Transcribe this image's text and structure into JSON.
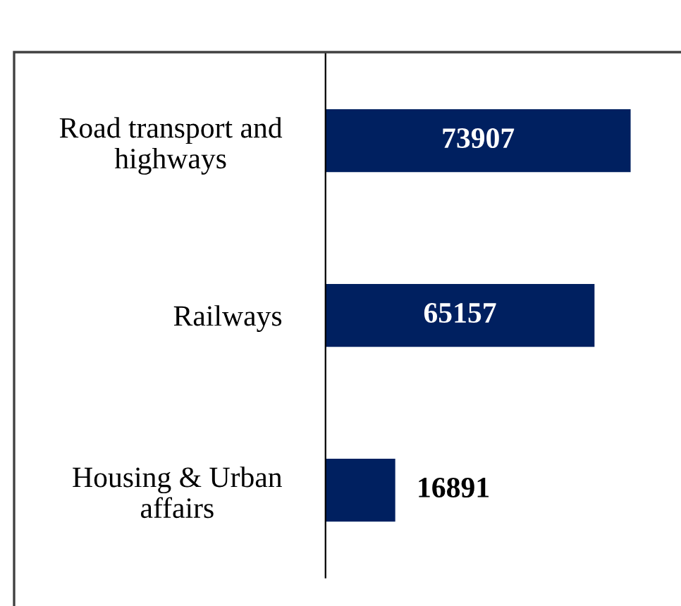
{
  "chart_data": {
    "type": "bar",
    "orientation": "horizontal",
    "categories": [
      "Road transport and\nhighways",
      "Railways",
      "Housing & Urban\naffairs"
    ],
    "values": [
      73907,
      65157,
      16891
    ],
    "color": "#002060",
    "data_labels": true,
    "grid": false,
    "legend": false
  }
}
